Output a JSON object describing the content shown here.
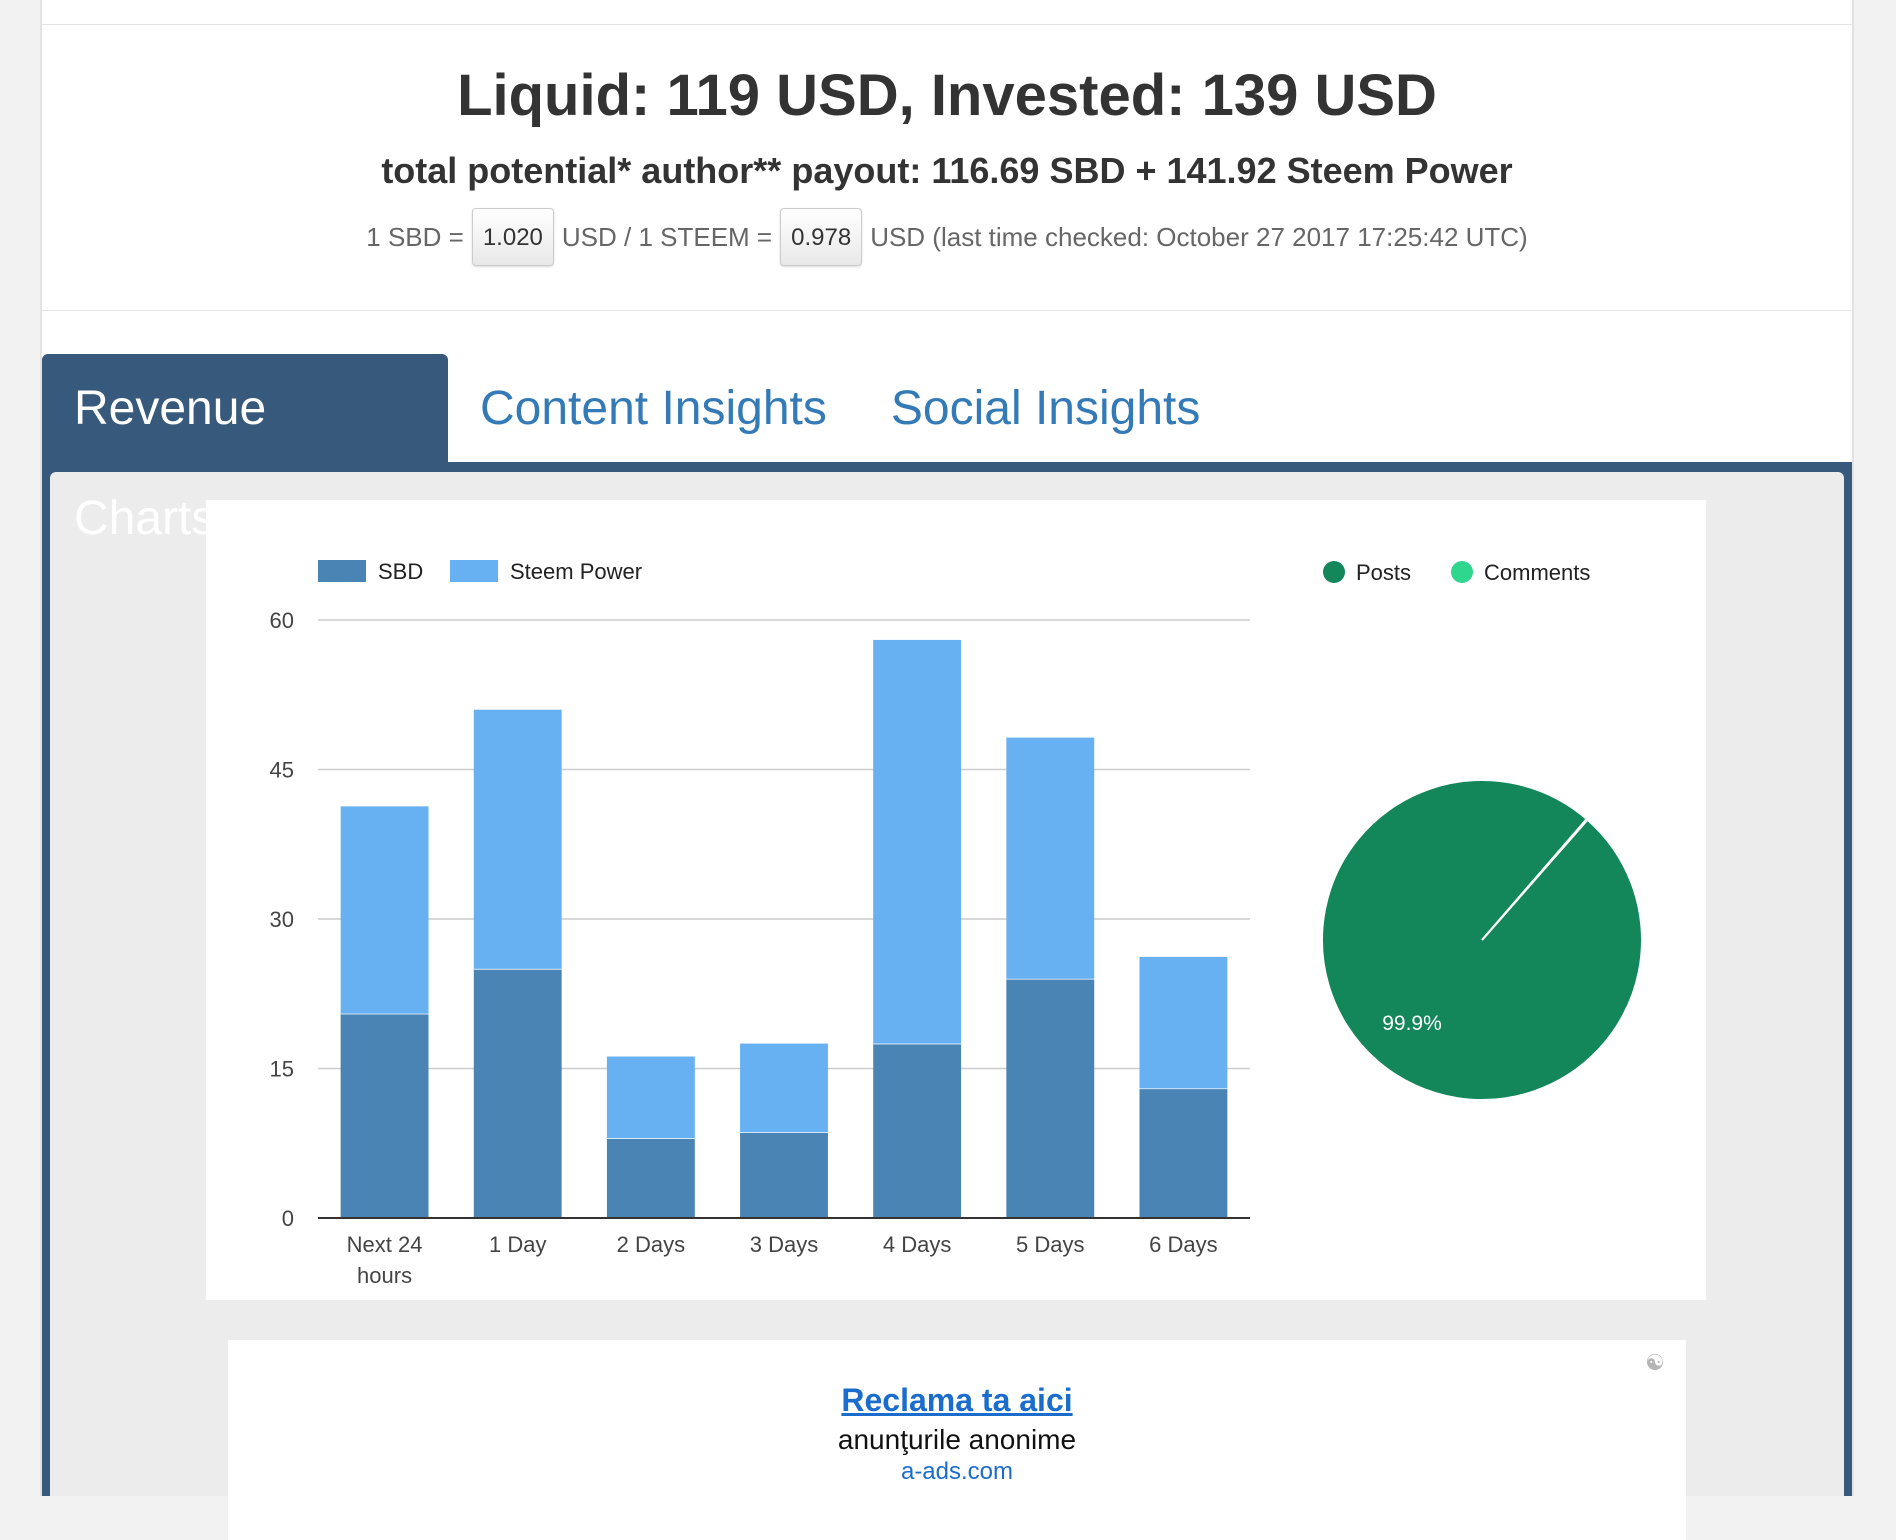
{
  "header": {
    "headline": "Liquid: 119 USD, Invested: 139 USD",
    "subline": "total potential* author** payout: 116.69 SBD + 141.92 Steem Power",
    "rate_prefix": "1 SBD =",
    "sbd_rate": "1.020",
    "rate_middle": "USD / 1 STEEM =",
    "steem_rate": "0.978",
    "rate_suffix": "USD (last time checked: October 27 2017 17:25:42 UTC)"
  },
  "tabs": [
    {
      "label": "Revenue Charts",
      "active": true
    },
    {
      "label": "Content Insights",
      "active": false
    },
    {
      "label": "Social Insights",
      "active": false
    }
  ],
  "chart_data": [
    {
      "type": "bar",
      "stacked": true,
      "categories": [
        "Next 24\nhours",
        "1 Day",
        "2 Days",
        "3 Days",
        "4 Days",
        "5 Days",
        "6 Days"
      ],
      "series": [
        {
          "name": "SBD",
          "color": "#4a84b5",
          "values": [
            20.5,
            25,
            8,
            8.6,
            17.5,
            24,
            13
          ]
        },
        {
          "name": "Steem Power",
          "color": "#67b1f2",
          "values": [
            20.8,
            26,
            8.2,
            8.9,
            40.5,
            24.2,
            13.2
          ]
        }
      ],
      "ylim": [
        0,
        60
      ],
      "yticks": [
        0,
        15,
        30,
        45,
        60
      ],
      "grid": true,
      "legend": "top-left"
    },
    {
      "type": "pie",
      "slices": [
        {
          "name": "Posts",
          "value": 99.9,
          "color": "#13875a"
        },
        {
          "name": "Comments",
          "value": 0.1,
          "color": "#2fd68d"
        }
      ],
      "slice_label": "99.9%",
      "legend": "top"
    }
  ],
  "ad": {
    "title": "Reclama ta aici",
    "subtitle": "anunţurile anonime",
    "link": "a-ads.com"
  }
}
